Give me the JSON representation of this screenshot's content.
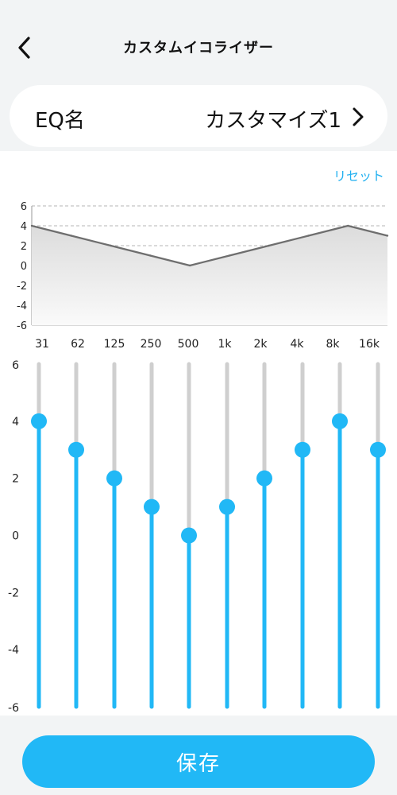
{
  "header": {
    "title": "カスタムイコライザー",
    "back_icon": "chevron-left-icon"
  },
  "eq_name": {
    "label": "EQ名",
    "value": "カスタマイズ1",
    "icon": "chevron-right-icon"
  },
  "reset": {
    "label": "リセット"
  },
  "colors": {
    "accent": "#21b8f6",
    "track": "#cfcfcf",
    "curve": "#6e6e6e"
  },
  "chart_data": {
    "type": "area",
    "categories": [
      "31",
      "62",
      "125",
      "250",
      "500",
      "1k",
      "2k",
      "4k",
      "8k",
      "16k"
    ],
    "x_tick_labels": [
      "31",
      "62",
      "125",
      "250",
      "500",
      "1k",
      "2k",
      "4k",
      "8k",
      "16k"
    ],
    "values": [
      4,
      3,
      2,
      1,
      0,
      1,
      2,
      3,
      4,
      3
    ],
    "ylim": [
      -6,
      6
    ],
    "y_ticks": [
      "6",
      "4",
      "2",
      "0",
      "-2",
      "-4",
      "-6"
    ],
    "grid": true,
    "title": "",
    "xlabel": "",
    "ylabel": ""
  },
  "sliders": {
    "ylim": [
      -6,
      6
    ],
    "y_ticks": [
      "6",
      "4",
      "2",
      "0",
      "-2",
      "-4",
      "-6"
    ],
    "values": [
      4,
      3,
      2,
      1,
      0,
      1,
      2,
      3,
      4,
      3
    ]
  },
  "footer": {
    "save_label": "保存"
  }
}
